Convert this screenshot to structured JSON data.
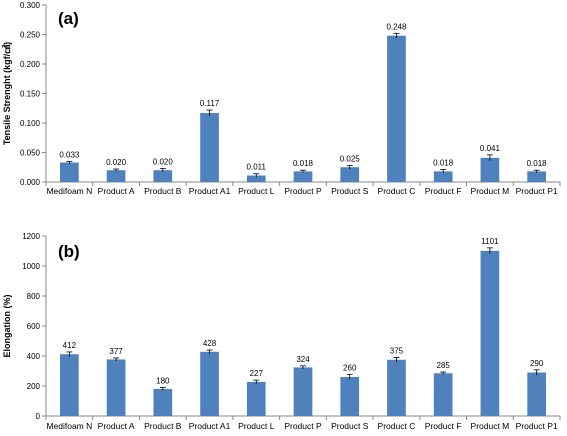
{
  "chart_data": [
    {
      "type": "bar",
      "panel_label": "(a)",
      "ylabel": "Tensile Strenght (kgf/㎠)",
      "xlabel": "",
      "ylim": [
        0,
        0.3
      ],
      "yticks": [
        "0.000",
        "0.050",
        "0.100",
        "0.150",
        "0.200",
        "0.250",
        "0.300"
      ],
      "ytick_values": [
        0,
        0.05,
        0.1,
        0.15,
        0.2,
        0.25,
        0.3
      ],
      "categories": [
        "Medifoam N",
        "Product A",
        "Product B",
        "Product A1",
        "Product L",
        "Product P",
        "Product S",
        "Product C",
        "Product F",
        "Product M",
        "Product P1"
      ],
      "values": [
        0.033,
        0.02,
        0.02,
        0.117,
        0.011,
        0.018,
        0.025,
        0.248,
        0.018,
        0.041,
        0.018
      ],
      "errors": [
        0.002,
        0.002,
        0.003,
        0.005,
        0.003,
        0.002,
        0.003,
        0.004,
        0.003,
        0.005,
        0.002
      ],
      "data_labels": [
        "0.033",
        "0.020",
        "0.020",
        "0.117",
        "0.011",
        "0.018",
        "0.025",
        "0.248",
        "0.018",
        "0.041",
        "0.018"
      ],
      "bar_color": "#4f81bd",
      "grid": false
    },
    {
      "type": "bar",
      "panel_label": "(b)",
      "ylabel": "Elongation (%)",
      "xlabel": "",
      "ylim": [
        0,
        1200
      ],
      "yticks": [
        "0",
        "200",
        "400",
        "600",
        "800",
        "1000",
        "1200"
      ],
      "ytick_values": [
        0,
        200,
        400,
        600,
        800,
        1000,
        1200
      ],
      "categories": [
        "Medifoam N",
        "Product A",
        "Product B",
        "Product A1",
        "Product L",
        "Product P",
        "Product S",
        "Product C",
        "Product F",
        "Product M",
        "Product P1"
      ],
      "values": [
        412,
        377,
        180,
        428,
        227,
        324,
        260,
        375,
        285,
        1101,
        290
      ],
      "errors": [
        15,
        10,
        10,
        12,
        12,
        10,
        18,
        15,
        8,
        20,
        18
      ],
      "data_labels": [
        "412",
        "377",
        "180",
        "428",
        "227",
        "324",
        "260",
        "375",
        "285",
        "1101",
        "290"
      ],
      "bar_color": "#4f81bd",
      "grid": false
    }
  ]
}
